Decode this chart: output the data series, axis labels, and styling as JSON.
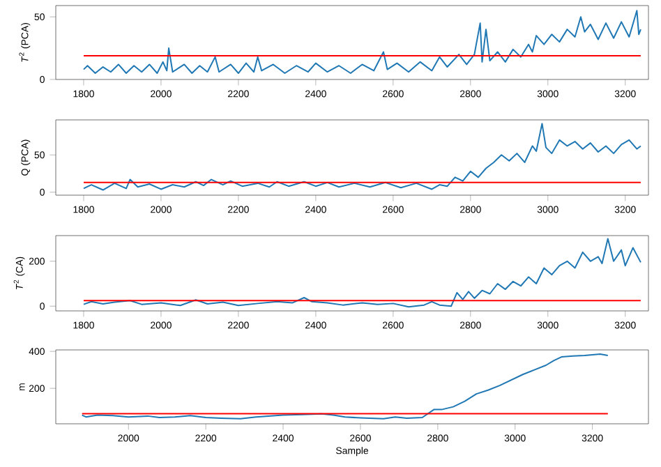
{
  "chart_data": [
    {
      "type": "line",
      "ylabel": "*T*$^{2}$ (PCA)",
      "xlim": [
        1728,
        3260
      ],
      "ylim": [
        0,
        59
      ],
      "xticks": [
        1800,
        2000,
        2200,
        2400,
        2600,
        2800,
        3000,
        3200
      ],
      "yticks": [
        0,
        50
      ],
      "x": [
        1800,
        1810,
        1830,
        1850,
        1870,
        1890,
        1910,
        1930,
        1950,
        1970,
        1990,
        2005,
        2015,
        2020,
        2030,
        2060,
        2080,
        2100,
        2120,
        2140,
        2150,
        2180,
        2200,
        2220,
        2240,
        2250,
        2260,
        2290,
        2320,
        2350,
        2380,
        2400,
        2430,
        2460,
        2490,
        2520,
        2550,
        2575,
        2585,
        2610,
        2640,
        2670,
        2700,
        2720,
        2740,
        2770,
        2790,
        2810,
        2825,
        2830,
        2840,
        2850,
        2870,
        2890,
        2910,
        2930,
        2950,
        2960,
        2970,
        2990,
        3010,
        3030,
        3050,
        3070,
        3085,
        3095,
        3110,
        3130,
        3150,
        3170,
        3190,
        3210,
        3230,
        3235,
        3240
      ],
      "series": [
        {
          "color": "#1f77b4",
          "values": [
            8,
            11,
            5,
            10,
            6,
            12,
            5,
            11,
            6,
            12,
            5,
            14,
            7,
            25,
            6,
            12,
            5,
            11,
            6,
            18,
            6,
            12,
            5,
            13,
            6,
            18,
            7,
            12,
            5,
            11,
            6,
            13,
            6,
            11,
            5,
            12,
            7,
            22,
            8,
            13,
            6,
            14,
            7,
            18,
            10,
            20,
            12,
            20,
            45,
            14,
            40,
            15,
            22,
            14,
            24,
            18,
            28,
            22,
            35,
            28,
            36,
            30,
            40,
            34,
            50,
            38,
            44,
            32,
            45,
            33,
            46,
            34,
            55,
            36,
            40
          ]
        }
      ],
      "ref_lines": [
        {
          "axis": "y",
          "value": 19,
          "color": "#ff0000"
        }
      ]
    },
    {
      "type": "line",
      "ylabel": "Q (PCA)",
      "xlim": [
        1728,
        3260
      ],
      "ylim": [
        -4,
        97
      ],
      "xticks": [
        1800,
        2000,
        2200,
        2400,
        2600,
        2800,
        3000,
        3200
      ],
      "yticks": [
        0,
        50
      ],
      "x": [
        1800,
        1820,
        1850,
        1880,
        1910,
        1920,
        1940,
        1970,
        2000,
        2030,
        2060,
        2090,
        2110,
        2130,
        2160,
        2180,
        2210,
        2250,
        2280,
        2300,
        2330,
        2370,
        2400,
        2430,
        2460,
        2500,
        2540,
        2580,
        2620,
        2660,
        2700,
        2720,
        2740,
        2760,
        2780,
        2800,
        2820,
        2840,
        2860,
        2880,
        2900,
        2920,
        2940,
        2960,
        2970,
        2985,
        2995,
        3010,
        3030,
        3050,
        3070,
        3090,
        3110,
        3130,
        3150,
        3170,
        3190,
        3210,
        3230,
        3240
      ],
      "series": [
        {
          "color": "#1f77b4",
          "values": [
            5,
            10,
            3,
            12,
            5,
            17,
            7,
            11,
            4,
            10,
            7,
            14,
            9,
            17,
            10,
            15,
            8,
            12,
            7,
            14,
            8,
            14,
            8,
            13,
            7,
            12,
            7,
            13,
            6,
            12,
            4,
            10,
            8,
            20,
            15,
            28,
            20,
            32,
            40,
            50,
            42,
            52,
            40,
            62,
            55,
            92,
            60,
            52,
            70,
            62,
            68,
            58,
            66,
            54,
            62,
            52,
            64,
            70,
            58,
            62
          ]
        }
      ],
      "ref_lines": [
        {
          "axis": "y",
          "value": 13,
          "color": "#ff0000"
        }
      ]
    },
    {
      "type": "line",
      "ylabel": "*T*$^{2}$ (CA)",
      "xlim": [
        1728,
        3260
      ],
      "ylim": [
        -21,
        314
      ],
      "xticks": [
        1800,
        2000,
        2200,
        2400,
        2600,
        2800,
        3000,
        3200
      ],
      "yticks": [
        0,
        200
      ],
      "x": [
        1800,
        1820,
        1850,
        1880,
        1920,
        1950,
        2000,
        2050,
        2090,
        2120,
        2160,
        2200,
        2250,
        2300,
        2340,
        2370,
        2390,
        2430,
        2470,
        2520,
        2560,
        2600,
        2640,
        2680,
        2700,
        2720,
        2750,
        2765,
        2780,
        2795,
        2810,
        2830,
        2850,
        2870,
        2890,
        2910,
        2930,
        2950,
        2970,
        2990,
        3010,
        3030,
        3050,
        3070,
        3090,
        3110,
        3130,
        3140,
        3155,
        3170,
        3190,
        3200,
        3220,
        3240
      ],
      "series": [
        {
          "color": "#1f77b4",
          "values": [
            8,
            20,
            10,
            18,
            25,
            8,
            15,
            3,
            28,
            10,
            18,
            3,
            12,
            20,
            15,
            38,
            20,
            15,
            5,
            15,
            8,
            12,
            -3,
            5,
            20,
            5,
            0,
            60,
            30,
            65,
            35,
            70,
            55,
            100,
            75,
            110,
            90,
            130,
            100,
            170,
            140,
            180,
            200,
            170,
            240,
            200,
            220,
            190,
            300,
            200,
            250,
            180,
            260,
            195
          ]
        }
      ],
      "ref_lines": [
        {
          "axis": "y",
          "value": 25,
          "color": "#ff0000"
        }
      ]
    },
    {
      "type": "line",
      "xlabel": "Sample",
      "ylabel": "m",
      "xlim": [
        1812,
        3345
      ],
      "ylim": [
        8,
        408
      ],
      "xticks": [
        2000,
        2200,
        2400,
        2600,
        2800,
        3000,
        3200
      ],
      "yticks": [
        200,
        400
      ],
      "x": [
        1880,
        1890,
        1920,
        1960,
        2000,
        2050,
        2080,
        2120,
        2160,
        2200,
        2240,
        2290,
        2330,
        2400,
        2450,
        2500,
        2530,
        2560,
        2600,
        2660,
        2690,
        2720,
        2760,
        2790,
        2810,
        2840,
        2870,
        2900,
        2930,
        2960,
        2990,
        3020,
        3050,
        3080,
        3100,
        3120,
        3150,
        3180,
        3200,
        3220,
        3240
      ],
      "series": [
        {
          "color": "#1f77b4",
          "values": [
            55,
            45,
            55,
            52,
            45,
            50,
            42,
            45,
            52,
            42,
            38,
            35,
            45,
            55,
            58,
            62,
            55,
            45,
            40,
            35,
            45,
            38,
            42,
            85,
            85,
            100,
            130,
            170,
            190,
            215,
            245,
            275,
            300,
            325,
            350,
            370,
            375,
            378,
            382,
            385,
            378
          ]
        }
      ],
      "ref_lines": [
        {
          "axis": "y",
          "value": 63,
          "color": "#ff0000"
        }
      ]
    }
  ]
}
